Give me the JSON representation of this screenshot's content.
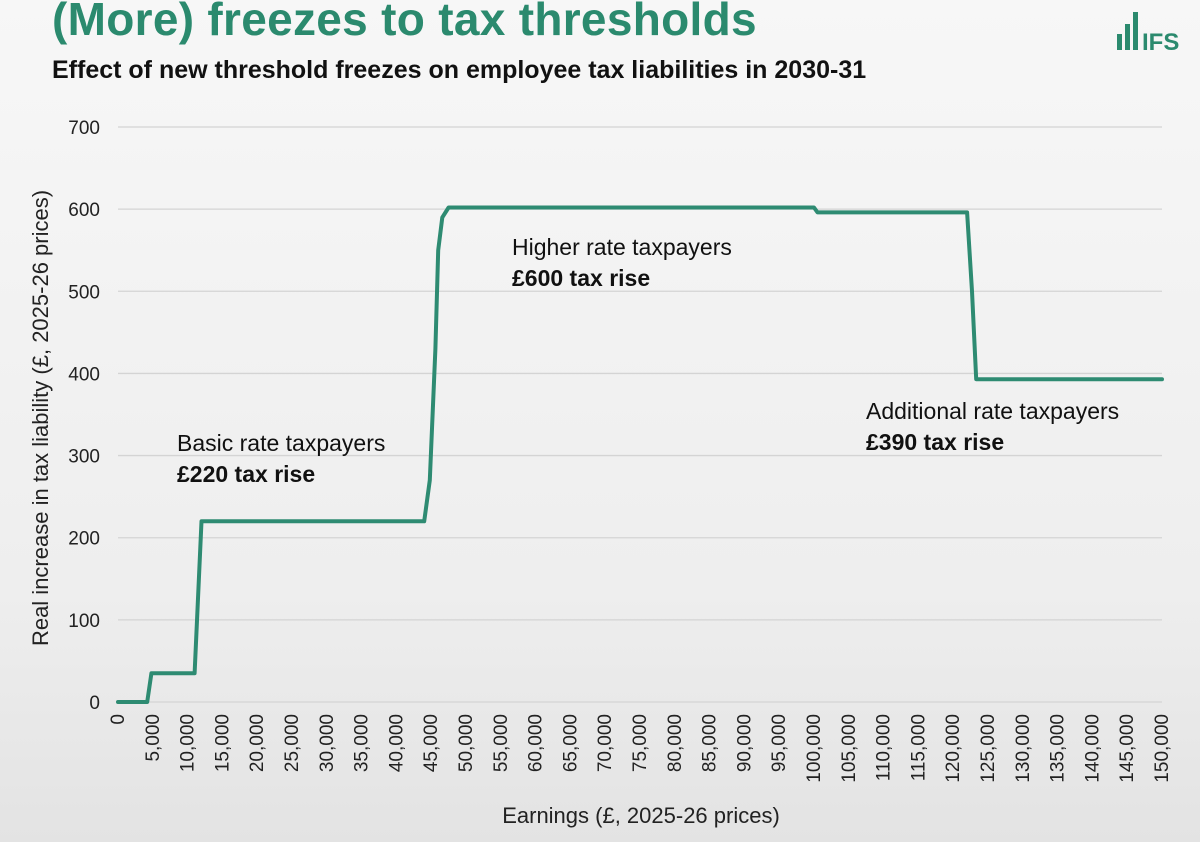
{
  "header": {
    "title": "(More) freezes to tax thresholds",
    "subtitle": "Effect of new threshold freezes on employee tax liabilities in 2030-31",
    "logo_text": "IFS"
  },
  "colors": {
    "accent": "#2b8a6e",
    "line": "#2e8b72",
    "grid": "#d4d4d4",
    "text": "#222222"
  },
  "chart_data": {
    "type": "line",
    "title": "",
    "xlabel": "Earnings (£, 2025-26 prices)",
    "ylabel": "Real increase in tax liability (£, 2025-26 prices)",
    "xlim": [
      0,
      150000
    ],
    "ylim": [
      0,
      700
    ],
    "grid": true,
    "x_ticks": [
      0,
      5000,
      10000,
      15000,
      20000,
      25000,
      30000,
      35000,
      40000,
      45000,
      50000,
      55000,
      60000,
      65000,
      70000,
      75000,
      80000,
      85000,
      90000,
      95000,
      100000,
      105000,
      110000,
      115000,
      120000,
      125000,
      130000,
      135000,
      140000,
      145000,
      150000
    ],
    "x_tick_labels": [
      "0",
      "5,000",
      "10,000",
      "15,000",
      "20,000",
      "25,000",
      "30,000",
      "35,000",
      "40,000",
      "45,000",
      "50,000",
      "55,000",
      "60,000",
      "65,000",
      "70,000",
      "75,000",
      "80,000",
      "85,000",
      "90,000",
      "95,000",
      "100,000",
      "105,000",
      "110,000",
      "115,000",
      "120,000",
      "125,000",
      "130,000",
      "135,000",
      "140,000",
      "145,000",
      "150,000"
    ],
    "y_ticks": [
      0,
      100,
      200,
      300,
      400,
      500,
      600,
      700
    ],
    "y_tick_labels": [
      "0",
      "100",
      "200",
      "300",
      "400",
      "500",
      "600",
      "700"
    ],
    "series": [
      {
        "x": [
          0,
          4200,
          4800,
          11000,
          12000,
          44000,
          44800,
          45600,
          46000,
          46600,
          47500,
          100000,
          100500,
          122000,
          122700,
          123300,
          150000
        ],
        "y": [
          0,
          0,
          35,
          35,
          220,
          220,
          270,
          430,
          550,
          590,
          602,
          602,
          596,
          596,
          500,
          393,
          393
        ]
      }
    ],
    "annotations": [
      {
        "label": "Basic rate taxpayers",
        "value": "£220 tax rise"
      },
      {
        "label": "Higher rate taxpayers",
        "value": "£600 tax rise"
      },
      {
        "label": "Additional rate taxpayers",
        "value": "£390 tax rise"
      }
    ]
  }
}
